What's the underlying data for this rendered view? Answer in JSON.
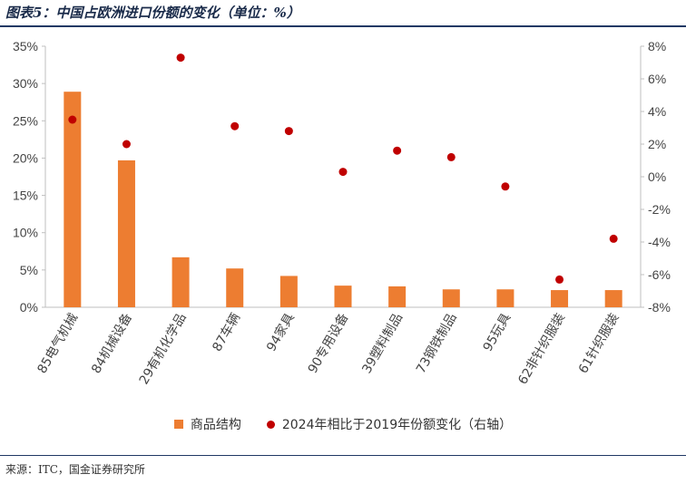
{
  "title": "图表5：中国占欧洲进口份额的变化（单位：%）",
  "source": "来源：ITC，国金证券研究所",
  "colors": {
    "bar": "#ed7d31",
    "dot": "#c00000",
    "axis": "#bfbfbf",
    "rule": "#1f3864"
  },
  "chart_data": {
    "type": "bar",
    "categories": [
      "85电气机械",
      "84机械设备",
      "29有机化学品",
      "87车辆",
      "94家具",
      "90专用设备",
      "39塑料制品",
      "73钢铁制品",
      "95玩具",
      "62非针织服装",
      "61针织服装"
    ],
    "series": [
      {
        "name": "商品结构",
        "type": "bar",
        "axis": "left",
        "values": [
          28.9,
          19.7,
          6.7,
          5.2,
          4.2,
          2.9,
          2.8,
          2.4,
          2.4,
          2.3,
          2.3
        ]
      },
      {
        "name": "2024年相比于2019年份额变化（右轴）",
        "type": "scatter",
        "axis": "right",
        "values": [
          3.5,
          2.0,
          7.3,
          3.1,
          2.8,
          0.3,
          1.6,
          1.2,
          -0.6,
          -6.3,
          -3.8
        ]
      }
    ],
    "ylim_left": [
      0,
      35
    ],
    "yticks_left": [
      "0%",
      "5%",
      "10%",
      "15%",
      "20%",
      "25%",
      "30%",
      "35%"
    ],
    "ylim_right": [
      -8,
      8
    ],
    "yticks_right": [
      "-8%",
      "-6%",
      "-4%",
      "-2%",
      "0%",
      "2%",
      "4%",
      "6%",
      "8%"
    ],
    "legend_position": "bottom"
  }
}
